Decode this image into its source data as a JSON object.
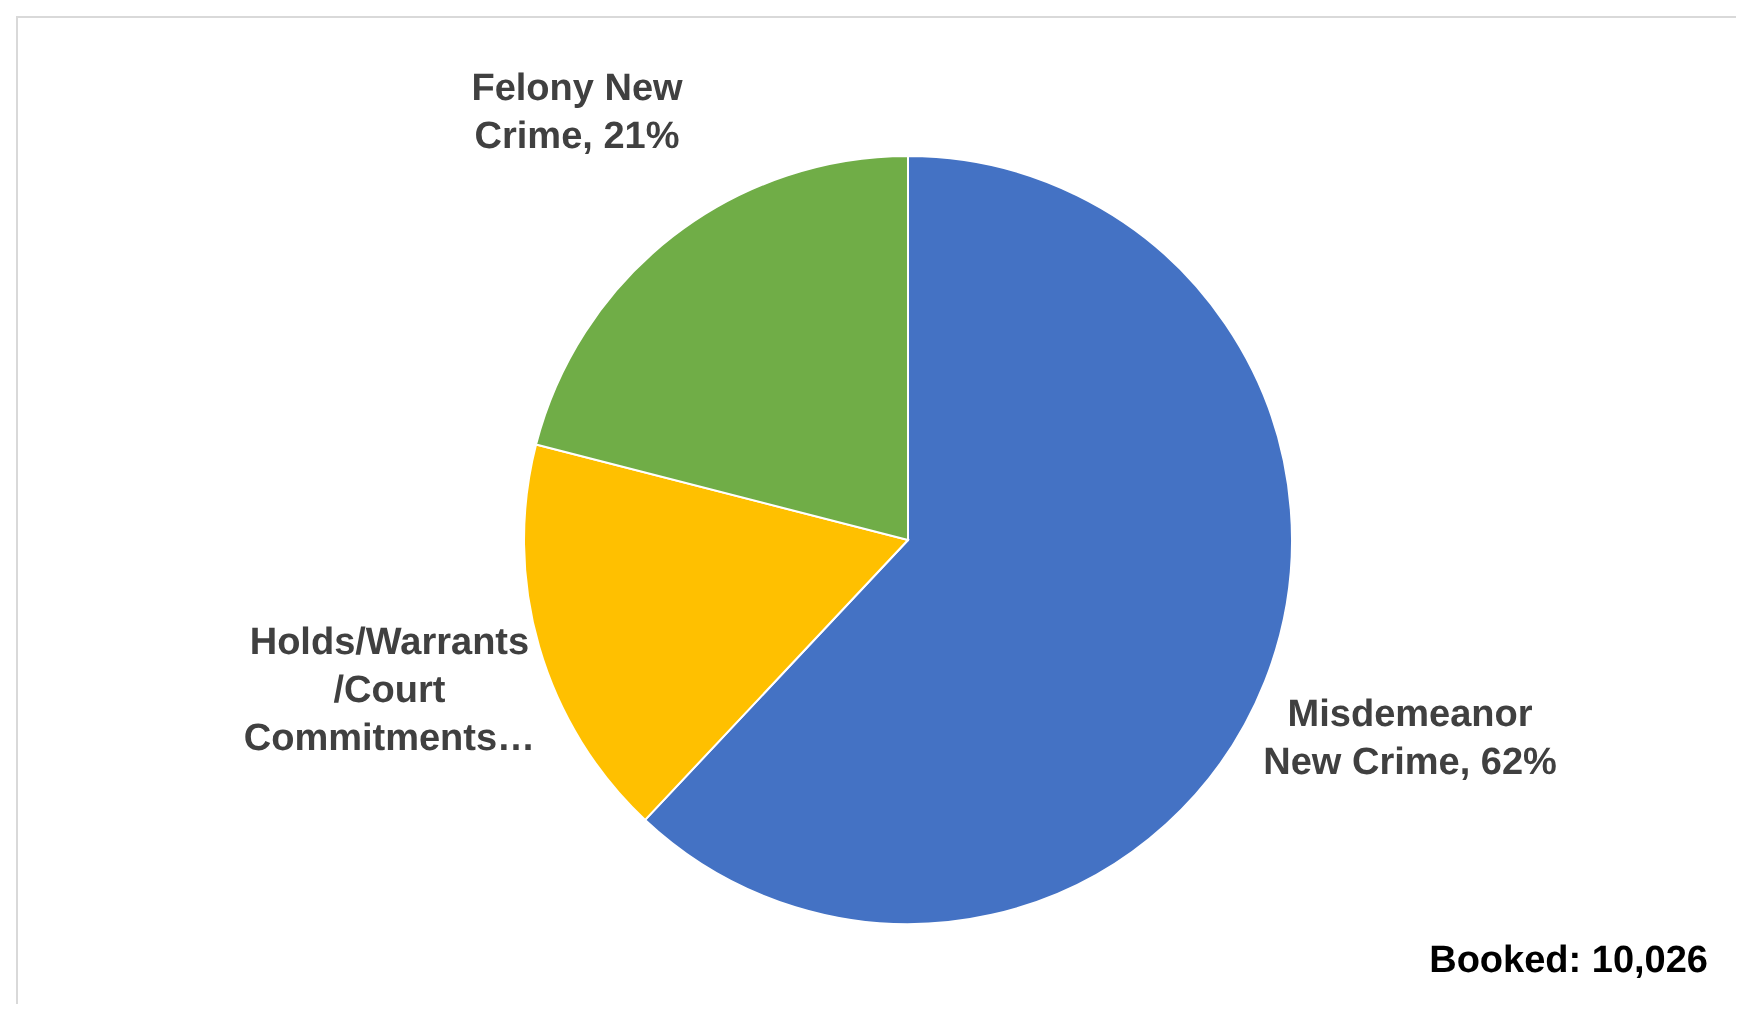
{
  "chart_data": {
    "type": "pie",
    "categories": [
      "Misdemeanor New Crime",
      "Holds/Warrants /Court Commitments…",
      "Felony New Crime"
    ],
    "values": [
      62,
      17,
      21
    ],
    "colors": [
      "#4472c4",
      "#ffc000",
      "#70ad47"
    ],
    "value_labels": [
      "62%",
      null,
      "21%"
    ],
    "annotations": [
      "Booked: 10,026"
    ],
    "legend": false
  }
}
